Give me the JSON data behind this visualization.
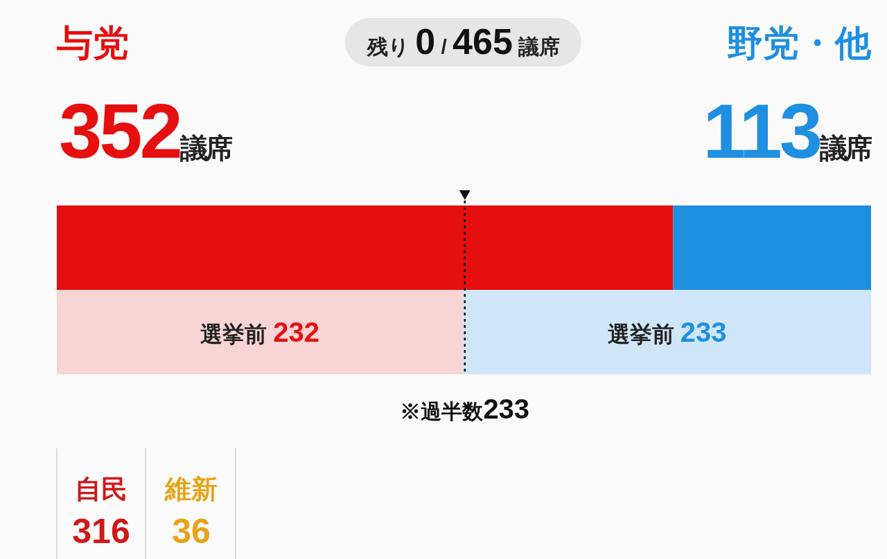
{
  "chart_data": {
    "type": "bar",
    "orientation": "horizontal",
    "stacked": true,
    "categories": [
      null,
      null
    ],
    "series": [
      {
        "name": "与党",
        "color": "#e60f0f",
        "colors": [
          "#e60f0f",
          "#f8d4d4"
        ],
        "values": [
          352,
          232
        ],
        "value_labels": [
          null,
          "選挙前 232"
        ]
      },
      {
        "name": "野党・他",
        "color": "#1e8fe1",
        "colors": [
          "#1e8fe1",
          "#cfe6f9"
        ],
        "values": [
          113,
          233
        ],
        "value_labels": [
          null,
          "選挙前 233"
        ]
      }
    ],
    "xlim": [
      0,
      465
    ],
    "tick_labels": false,
    "ref_lines": [
      {
        "axis": "x",
        "value": 233,
        "label": "※過半数233",
        "color": "#111111",
        "line_style": "dotted"
      }
    ],
    "annotations": [
      "残り 0 / 465 議席",
      "352議席",
      "113議席",
      "自民 316",
      "維新 36"
    ]
  }
}
